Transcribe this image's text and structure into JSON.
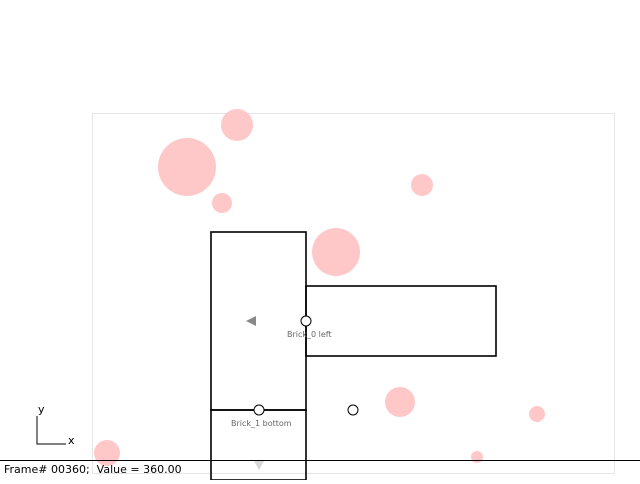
{
  "scene": {
    "background_color": "#ffffff",
    "boundary_color": "#e6e6e6",
    "particle_color": "#ffc8c8",
    "brick_stroke_color": "#000000",
    "label_color": "#666666",
    "anchor_color": "#ffffff",
    "arrow_color": "#888888"
  },
  "labels": {
    "brick0_left": "Brick_0 left",
    "brick1_bottom": "Brick_1 bottom"
  },
  "axes": {
    "x_label": "x",
    "y_label": "y"
  },
  "status": {
    "text": "Frame# 00360;  Value = 360.00"
  }
}
